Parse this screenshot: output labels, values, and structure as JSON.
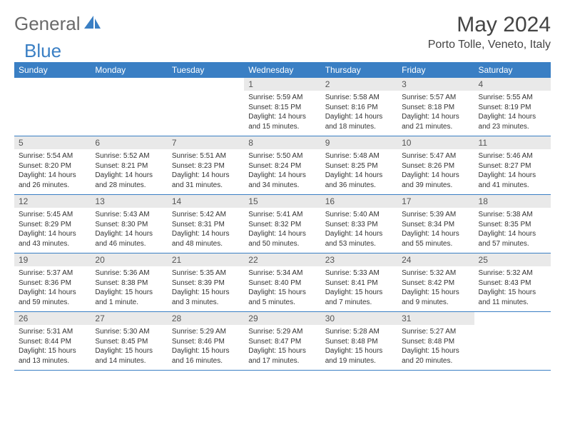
{
  "logo": {
    "a": "General",
    "b": "Blue"
  },
  "title": "May 2024",
  "location": "Porto Tolle, Veneto, Italy",
  "weekdays": [
    "Sunday",
    "Monday",
    "Tuesday",
    "Wednesday",
    "Thursday",
    "Friday",
    "Saturday"
  ],
  "colors": {
    "header_bg": "#3a7fc4",
    "header_text": "#ffffff",
    "daynum_bg": "#e9e9e9",
    "border": "#3a7fc4"
  },
  "weeks": [
    [
      {
        "num": "",
        "sunrise": "",
        "sunset": "",
        "daylight1": "",
        "daylight2": ""
      },
      {
        "num": "",
        "sunrise": "",
        "sunset": "",
        "daylight1": "",
        "daylight2": ""
      },
      {
        "num": "",
        "sunrise": "",
        "sunset": "",
        "daylight1": "",
        "daylight2": ""
      },
      {
        "num": "1",
        "sunrise": "Sunrise: 5:59 AM",
        "sunset": "Sunset: 8:15 PM",
        "daylight1": "Daylight: 14 hours",
        "daylight2": "and 15 minutes."
      },
      {
        "num": "2",
        "sunrise": "Sunrise: 5:58 AM",
        "sunset": "Sunset: 8:16 PM",
        "daylight1": "Daylight: 14 hours",
        "daylight2": "and 18 minutes."
      },
      {
        "num": "3",
        "sunrise": "Sunrise: 5:57 AM",
        "sunset": "Sunset: 8:18 PM",
        "daylight1": "Daylight: 14 hours",
        "daylight2": "and 21 minutes."
      },
      {
        "num": "4",
        "sunrise": "Sunrise: 5:55 AM",
        "sunset": "Sunset: 8:19 PM",
        "daylight1": "Daylight: 14 hours",
        "daylight2": "and 23 minutes."
      }
    ],
    [
      {
        "num": "5",
        "sunrise": "Sunrise: 5:54 AM",
        "sunset": "Sunset: 8:20 PM",
        "daylight1": "Daylight: 14 hours",
        "daylight2": "and 26 minutes."
      },
      {
        "num": "6",
        "sunrise": "Sunrise: 5:52 AM",
        "sunset": "Sunset: 8:21 PM",
        "daylight1": "Daylight: 14 hours",
        "daylight2": "and 28 minutes."
      },
      {
        "num": "7",
        "sunrise": "Sunrise: 5:51 AM",
        "sunset": "Sunset: 8:23 PM",
        "daylight1": "Daylight: 14 hours",
        "daylight2": "and 31 minutes."
      },
      {
        "num": "8",
        "sunrise": "Sunrise: 5:50 AM",
        "sunset": "Sunset: 8:24 PM",
        "daylight1": "Daylight: 14 hours",
        "daylight2": "and 34 minutes."
      },
      {
        "num": "9",
        "sunrise": "Sunrise: 5:48 AM",
        "sunset": "Sunset: 8:25 PM",
        "daylight1": "Daylight: 14 hours",
        "daylight2": "and 36 minutes."
      },
      {
        "num": "10",
        "sunrise": "Sunrise: 5:47 AM",
        "sunset": "Sunset: 8:26 PM",
        "daylight1": "Daylight: 14 hours",
        "daylight2": "and 39 minutes."
      },
      {
        "num": "11",
        "sunrise": "Sunrise: 5:46 AM",
        "sunset": "Sunset: 8:27 PM",
        "daylight1": "Daylight: 14 hours",
        "daylight2": "and 41 minutes."
      }
    ],
    [
      {
        "num": "12",
        "sunrise": "Sunrise: 5:45 AM",
        "sunset": "Sunset: 8:29 PM",
        "daylight1": "Daylight: 14 hours",
        "daylight2": "and 43 minutes."
      },
      {
        "num": "13",
        "sunrise": "Sunrise: 5:43 AM",
        "sunset": "Sunset: 8:30 PM",
        "daylight1": "Daylight: 14 hours",
        "daylight2": "and 46 minutes."
      },
      {
        "num": "14",
        "sunrise": "Sunrise: 5:42 AM",
        "sunset": "Sunset: 8:31 PM",
        "daylight1": "Daylight: 14 hours",
        "daylight2": "and 48 minutes."
      },
      {
        "num": "15",
        "sunrise": "Sunrise: 5:41 AM",
        "sunset": "Sunset: 8:32 PM",
        "daylight1": "Daylight: 14 hours",
        "daylight2": "and 50 minutes."
      },
      {
        "num": "16",
        "sunrise": "Sunrise: 5:40 AM",
        "sunset": "Sunset: 8:33 PM",
        "daylight1": "Daylight: 14 hours",
        "daylight2": "and 53 minutes."
      },
      {
        "num": "17",
        "sunrise": "Sunrise: 5:39 AM",
        "sunset": "Sunset: 8:34 PM",
        "daylight1": "Daylight: 14 hours",
        "daylight2": "and 55 minutes."
      },
      {
        "num": "18",
        "sunrise": "Sunrise: 5:38 AM",
        "sunset": "Sunset: 8:35 PM",
        "daylight1": "Daylight: 14 hours",
        "daylight2": "and 57 minutes."
      }
    ],
    [
      {
        "num": "19",
        "sunrise": "Sunrise: 5:37 AM",
        "sunset": "Sunset: 8:36 PM",
        "daylight1": "Daylight: 14 hours",
        "daylight2": "and 59 minutes."
      },
      {
        "num": "20",
        "sunrise": "Sunrise: 5:36 AM",
        "sunset": "Sunset: 8:38 PM",
        "daylight1": "Daylight: 15 hours",
        "daylight2": "and 1 minute."
      },
      {
        "num": "21",
        "sunrise": "Sunrise: 5:35 AM",
        "sunset": "Sunset: 8:39 PM",
        "daylight1": "Daylight: 15 hours",
        "daylight2": "and 3 minutes."
      },
      {
        "num": "22",
        "sunrise": "Sunrise: 5:34 AM",
        "sunset": "Sunset: 8:40 PM",
        "daylight1": "Daylight: 15 hours",
        "daylight2": "and 5 minutes."
      },
      {
        "num": "23",
        "sunrise": "Sunrise: 5:33 AM",
        "sunset": "Sunset: 8:41 PM",
        "daylight1": "Daylight: 15 hours",
        "daylight2": "and 7 minutes."
      },
      {
        "num": "24",
        "sunrise": "Sunrise: 5:32 AM",
        "sunset": "Sunset: 8:42 PM",
        "daylight1": "Daylight: 15 hours",
        "daylight2": "and 9 minutes."
      },
      {
        "num": "25",
        "sunrise": "Sunrise: 5:32 AM",
        "sunset": "Sunset: 8:43 PM",
        "daylight1": "Daylight: 15 hours",
        "daylight2": "and 11 minutes."
      }
    ],
    [
      {
        "num": "26",
        "sunrise": "Sunrise: 5:31 AM",
        "sunset": "Sunset: 8:44 PM",
        "daylight1": "Daylight: 15 hours",
        "daylight2": "and 13 minutes."
      },
      {
        "num": "27",
        "sunrise": "Sunrise: 5:30 AM",
        "sunset": "Sunset: 8:45 PM",
        "daylight1": "Daylight: 15 hours",
        "daylight2": "and 14 minutes."
      },
      {
        "num": "28",
        "sunrise": "Sunrise: 5:29 AM",
        "sunset": "Sunset: 8:46 PM",
        "daylight1": "Daylight: 15 hours",
        "daylight2": "and 16 minutes."
      },
      {
        "num": "29",
        "sunrise": "Sunrise: 5:29 AM",
        "sunset": "Sunset: 8:47 PM",
        "daylight1": "Daylight: 15 hours",
        "daylight2": "and 17 minutes."
      },
      {
        "num": "30",
        "sunrise": "Sunrise: 5:28 AM",
        "sunset": "Sunset: 8:48 PM",
        "daylight1": "Daylight: 15 hours",
        "daylight2": "and 19 minutes."
      },
      {
        "num": "31",
        "sunrise": "Sunrise: 5:27 AM",
        "sunset": "Sunset: 8:48 PM",
        "daylight1": "Daylight: 15 hours",
        "daylight2": "and 20 minutes."
      },
      {
        "num": "",
        "sunrise": "",
        "sunset": "",
        "daylight1": "",
        "daylight2": ""
      }
    ]
  ]
}
